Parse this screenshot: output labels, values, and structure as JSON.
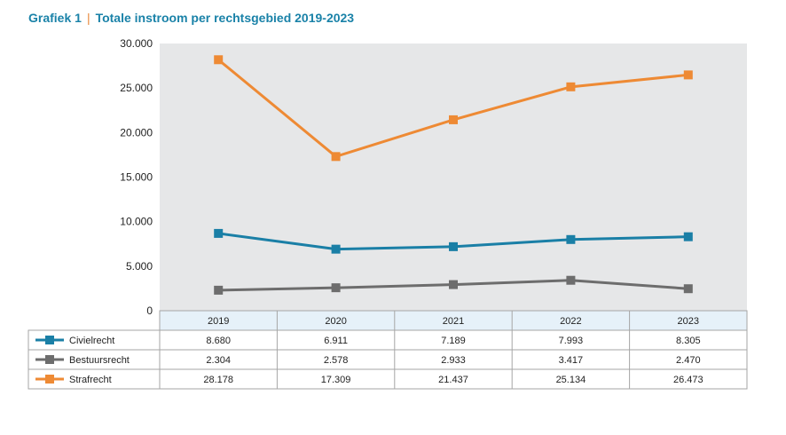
{
  "header": {
    "label": "Grafiek 1",
    "separator": "|",
    "title": "Totale instroom per rechtsgebied 2019-2023"
  },
  "chart_data": {
    "type": "line",
    "x": [
      "2019",
      "2020",
      "2021",
      "2022",
      "2023"
    ],
    "ylim": [
      0,
      30000
    ],
    "yticks": [
      0,
      5000,
      10000,
      15000,
      20000,
      25000,
      30000
    ],
    "ytick_labels": [
      "0",
      "5.000",
      "10.000",
      "15.000",
      "20.000",
      "25.000",
      "30.000"
    ],
    "grid": false,
    "legend": "table-below",
    "series": [
      {
        "name": "Civielrecht",
        "color": "#1a7fa6",
        "values": [
          8680,
          6911,
          7189,
          7993,
          8305
        ],
        "labels": [
          "8.680",
          "6.911",
          "7.189",
          "7.993",
          "8.305"
        ]
      },
      {
        "name": "Bestuursrecht",
        "color": "#6d6d6d",
        "values": [
          2304,
          2578,
          2933,
          3417,
          2470
        ],
        "labels": [
          "2.304",
          "2.578",
          "2.933",
          "3.417",
          "2.470"
        ]
      },
      {
        "name": "Strafrecht",
        "color": "#ee8a34",
        "values": [
          28178,
          17309,
          21437,
          25134,
          26473
        ],
        "labels": [
          "28.178",
          "17.309",
          "21.437",
          "25.134",
          "26.473"
        ]
      }
    ]
  },
  "colors": {
    "plot_bg": "#e6e7e8",
    "header_row_bg": "#e6f1f9",
    "table_border": "#a6a6a6",
    "title": "#1a82a8",
    "separator": "#e8893a"
  }
}
